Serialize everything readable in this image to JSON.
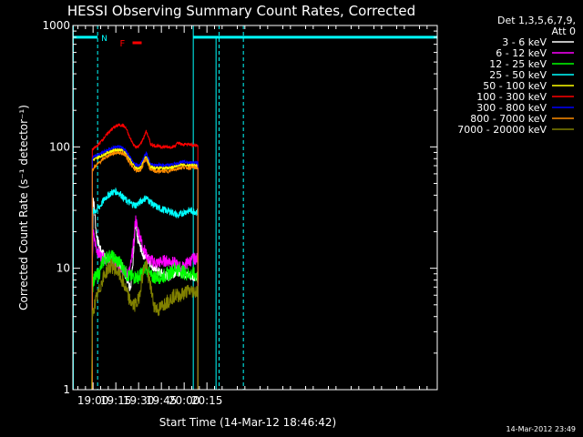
{
  "chart_data": {
    "type": "line",
    "title": "HESSI Observing Summary Count Rates, Corrected",
    "xlabel": "Start Time (14-Mar-12 18:46:42)",
    "ylabel": "Corrected Count Rate (s⁻¹ detector⁻¹)",
    "yscale": "log",
    "ylim": [
      1,
      1000
    ],
    "xlim_minutes_of_day": [
      1126.7,
      1366.7
    ],
    "x_ticks": [
      {
        "label": "19:00",
        "t": 1140
      },
      {
        "label": "19:15",
        "t": 1155
      },
      {
        "label": "19:30",
        "t": 1170
      },
      {
        "label": "19:45",
        "t": 1185
      },
      {
        "label": "20:00",
        "t": 1200
      },
      {
        "label": "20:15",
        "t": 1215
      }
    ],
    "y_ticks": [
      {
        "label": "1",
        "v": 1
      },
      {
        "label": "10",
        "v": 10
      },
      {
        "label": "100",
        "v": 100
      },
      {
        "label": "1000",
        "v": 1000
      }
    ],
    "legend_header": [
      "Det 1,3,5,6,7,9,",
      "Att 0"
    ],
    "legend_position": "right",
    "annotations": [
      {
        "text": "N",
        "color": "#00ffff"
      },
      {
        "text": "F",
        "color": "#ff0000"
      }
    ],
    "night_intervals": [
      [
        1126.7,
        1143
      ],
      [
        1206,
        1366.7
      ]
    ],
    "data_gap": [
      1143,
      1206
    ],
    "saa_markers": [
      1127,
      1143,
      1206,
      1223
    ],
    "flare_flag_interval": [
      1166,
      1172
    ],
    "series": [
      {
        "name": "3 - 6 keV",
        "color": "#ffffff",
        "points": [
          [
            1139.5,
            8.5
          ],
          [
            1140,
            40
          ],
          [
            1141,
            30
          ],
          [
            1142,
            20
          ],
          [
            1143,
            17
          ],
          [
            1145,
            14
          ],
          [
            1147,
            13
          ],
          [
            1150,
            12
          ],
          [
            1153,
            11.5
          ],
          [
            1156,
            11
          ],
          [
            1159,
            10.5
          ],
          [
            1162,
            8.5
          ],
          [
            1164,
            7
          ],
          [
            1165,
            7.5
          ],
          [
            1166,
            10
          ],
          [
            1167,
            15
          ],
          [
            1168,
            24
          ],
          [
            1169,
            18
          ],
          [
            1171,
            15
          ],
          [
            1173,
            13
          ],
          [
            1176,
            12
          ],
          [
            1179,
            10.5
          ],
          [
            1182,
            9.5
          ],
          [
            1186,
            9
          ],
          [
            1190,
            8.5
          ],
          [
            1195,
            9.5
          ],
          [
            1200,
            9
          ],
          [
            1205,
            8.5
          ],
          [
            1209,
            8.7
          ]
        ]
      },
      {
        "name": "6 - 12 keV",
        "color": "#ff00ff",
        "points": [
          [
            1139.5,
            9
          ],
          [
            1140,
            20
          ],
          [
            1141,
            17
          ],
          [
            1142,
            15
          ],
          [
            1144,
            13
          ],
          [
            1147,
            12
          ],
          [
            1150,
            11.5
          ],
          [
            1153,
            11
          ],
          [
            1156,
            10.5
          ],
          [
            1159,
            10
          ],
          [
            1162,
            9
          ],
          [
            1164,
            9.5
          ],
          [
            1165,
            11
          ],
          [
            1167,
            17
          ],
          [
            1168,
            26
          ],
          [
            1169,
            22
          ],
          [
            1171,
            18
          ],
          [
            1173,
            15
          ],
          [
            1176,
            12
          ],
          [
            1179,
            11.5
          ],
          [
            1182,
            11
          ],
          [
            1186,
            11.5
          ],
          [
            1190,
            11.5
          ],
          [
            1194,
            11
          ],
          [
            1198,
            10
          ],
          [
            1202,
            11
          ],
          [
            1206,
            12
          ],
          [
            1209,
            12
          ]
        ]
      },
      {
        "name": "12 - 25 keV",
        "color": "#00ff00",
        "points": [
          [
            1139.5,
            6
          ],
          [
            1140,
            8
          ],
          [
            1142,
            8.5
          ],
          [
            1144,
            9
          ],
          [
            1146,
            11
          ],
          [
            1148,
            12
          ],
          [
            1150,
            12.5
          ],
          [
            1152,
            12.5
          ],
          [
            1154,
            12
          ],
          [
            1156,
            11.5
          ],
          [
            1158,
            11
          ],
          [
            1160,
            10
          ],
          [
            1162,
            9
          ],
          [
            1164,
            8.5
          ],
          [
            1166,
            8.5
          ],
          [
            1168,
            8.5
          ],
          [
            1170,
            8.5
          ],
          [
            1172,
            9
          ],
          [
            1174,
            10
          ],
          [
            1175,
            10.5
          ],
          [
            1176,
            9.5
          ],
          [
            1178,
            8.5
          ],
          [
            1181,
            8.5
          ],
          [
            1185,
            8.5
          ],
          [
            1190,
            9
          ],
          [
            1194,
            10
          ],
          [
            1198,
            9.5
          ],
          [
            1202,
            9
          ],
          [
            1206,
            9
          ],
          [
            1209,
            8.5
          ]
        ]
      },
      {
        "name": "25 - 50 keV",
        "color": "#00ffff",
        "points": [
          [
            1139.5,
            29
          ],
          [
            1142,
            30
          ],
          [
            1145,
            33
          ],
          [
            1148,
            38
          ],
          [
            1150,
            40
          ],
          [
            1152,
            42
          ],
          [
            1155,
            43
          ],
          [
            1158,
            41
          ],
          [
            1160,
            38
          ],
          [
            1162,
            36
          ],
          [
            1165,
            34
          ],
          [
            1168,
            33
          ],
          [
            1171,
            35
          ],
          [
            1173,
            37
          ],
          [
            1175,
            38
          ],
          [
            1177,
            36
          ],
          [
            1180,
            33
          ],
          [
            1184,
            31
          ],
          [
            1188,
            30
          ],
          [
            1192,
            29
          ],
          [
            1196,
            27
          ],
          [
            1200,
            29
          ],
          [
            1204,
            30
          ],
          [
            1209,
            29
          ]
        ]
      },
      {
        "name": "50 - 100 keV",
        "color": "#ffff00",
        "points": [
          [
            1139.5,
            78
          ],
          [
            1142,
            80
          ],
          [
            1145,
            84
          ],
          [
            1148,
            88
          ],
          [
            1151,
            91
          ],
          [
            1154,
            94
          ],
          [
            1157,
            95
          ],
          [
            1160,
            93
          ],
          [
            1162,
            88
          ],
          [
            1164,
            80
          ],
          [
            1166,
            72
          ],
          [
            1168,
            67
          ],
          [
            1170,
            66
          ],
          [
            1172,
            70
          ],
          [
            1174,
            80
          ],
          [
            1175,
            85
          ],
          [
            1176,
            78
          ],
          [
            1178,
            68
          ],
          [
            1181,
            67
          ],
          [
            1185,
            67
          ],
          [
            1190,
            67
          ],
          [
            1195,
            69
          ],
          [
            1198,
            72
          ],
          [
            1202,
            70
          ],
          [
            1206,
            71
          ],
          [
            1209,
            70
          ]
        ]
      },
      {
        "name": "100 - 300 keV",
        "color": "#ff0000",
        "points": [
          [
            1139.5,
            95
          ],
          [
            1142,
            100
          ],
          [
            1145,
            110
          ],
          [
            1148,
            122
          ],
          [
            1151,
            135
          ],
          [
            1154,
            145
          ],
          [
            1157,
            152
          ],
          [
            1160,
            150
          ],
          [
            1162,
            140
          ],
          [
            1164,
            120
          ],
          [
            1166,
            108
          ],
          [
            1168,
            100
          ],
          [
            1170,
            100
          ],
          [
            1172,
            110
          ],
          [
            1174,
            125
          ],
          [
            1175,
            135
          ],
          [
            1176,
            125
          ],
          [
            1178,
            105
          ],
          [
            1181,
            102
          ],
          [
            1185,
            100
          ],
          [
            1189,
            100
          ],
          [
            1193,
            100
          ],
          [
            1196,
            108
          ],
          [
            1199,
            104
          ],
          [
            1203,
            106
          ],
          [
            1206,
            103
          ],
          [
            1209,
            103
          ]
        ]
      },
      {
        "name": "300 - 800 keV",
        "color": "#0000ff",
        "points": [
          [
            1139.5,
            82
          ],
          [
            1142,
            85
          ],
          [
            1145,
            88
          ],
          [
            1148,
            92
          ],
          [
            1151,
            96
          ],
          [
            1154,
            99
          ],
          [
            1157,
            100
          ],
          [
            1160,
            97
          ],
          [
            1162,
            92
          ],
          [
            1164,
            84
          ],
          [
            1166,
            76
          ],
          [
            1168,
            71
          ],
          [
            1170,
            70
          ],
          [
            1172,
            75
          ],
          [
            1174,
            85
          ],
          [
            1175,
            90
          ],
          [
            1176,
            82
          ],
          [
            1178,
            72
          ],
          [
            1181,
            71
          ],
          [
            1185,
            71
          ],
          [
            1190,
            71
          ],
          [
            1195,
            73
          ],
          [
            1199,
            75
          ],
          [
            1203,
            74
          ],
          [
            1206,
            75
          ],
          [
            1209,
            74
          ]
        ]
      },
      {
        "name": "800 - 7000 keV",
        "color": "#ff8c00",
        "points": [
          [
            1139.5,
            65
          ],
          [
            1142,
            70
          ],
          [
            1145,
            76
          ],
          [
            1148,
            82
          ],
          [
            1151,
            86
          ],
          [
            1154,
            89
          ],
          [
            1157,
            90
          ],
          [
            1160,
            88
          ],
          [
            1162,
            83
          ],
          [
            1164,
            75
          ],
          [
            1166,
            68
          ],
          [
            1168,
            64
          ],
          [
            1170,
            63
          ],
          [
            1172,
            67
          ],
          [
            1174,
            76
          ],
          [
            1175,
            80
          ],
          [
            1176,
            73
          ],
          [
            1178,
            64
          ],
          [
            1181,
            63
          ],
          [
            1185,
            63
          ],
          [
            1190,
            63
          ],
          [
            1195,
            66
          ],
          [
            1199,
            68
          ],
          [
            1203,
            67
          ],
          [
            1206,
            68
          ],
          [
            1209,
            67
          ]
        ]
      },
      {
        "name": "7000 - 20000 keV",
        "color": "#808000",
        "points": [
          [
            1139,
            1
          ],
          [
            1139.5,
            4
          ],
          [
            1141,
            5
          ],
          [
            1142,
            5.5
          ],
          [
            1144,
            6.5
          ],
          [
            1146,
            8
          ],
          [
            1148,
            9
          ],
          [
            1150,
            10
          ],
          [
            1152,
            10.5
          ],
          [
            1154,
            10
          ],
          [
            1156,
            9.5
          ],
          [
            1158,
            8.5
          ],
          [
            1160,
            7.5
          ],
          [
            1162,
            6.5
          ],
          [
            1164,
            5.5
          ],
          [
            1166,
            5
          ],
          [
            1168,
            5
          ],
          [
            1170,
            5.5
          ],
          [
            1172,
            8
          ],
          [
            1174,
            10.5
          ],
          [
            1175,
            11
          ],
          [
            1176,
            9
          ],
          [
            1178,
            7
          ],
          [
            1180,
            5
          ],
          [
            1183,
            4.5
          ],
          [
            1186,
            5
          ],
          [
            1190,
            5.5
          ],
          [
            1194,
            6
          ],
          [
            1198,
            6
          ],
          [
            1202,
            6.5
          ],
          [
            1206,
            6.5
          ],
          [
            1209,
            6.5
          ]
        ]
      }
    ]
  },
  "timestamp": "14-Mar-2012 23:49"
}
